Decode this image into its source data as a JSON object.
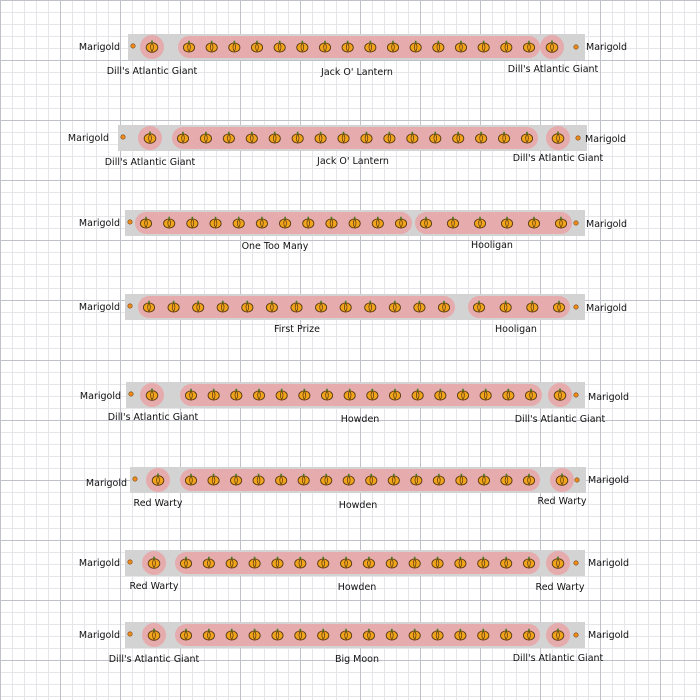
{
  "beds": [
    {
      "edge_left": "Marigold",
      "edge_right": "Marigold",
      "segments": [
        {
          "variety": "Dill's Atlantic Giant",
          "plants": 1
        },
        {
          "variety": "Jack O' Lantern",
          "plants": 16
        },
        {
          "variety": "Dill's Atlantic Giant",
          "plants": 1
        }
      ]
    },
    {
      "edge_left": "Marigold",
      "edge_right": "Marigold",
      "segments": [
        {
          "variety": "Dill's Atlantic Giant",
          "plants": 1
        },
        {
          "variety": "Jack O' Lantern",
          "plants": 16
        },
        {
          "variety": "Dill's Atlantic Giant",
          "plants": 1
        }
      ]
    },
    {
      "edge_left": "Marigold",
      "edge_right": "Marigold",
      "segments": [
        {
          "variety": "One Too Many",
          "plants": 12
        },
        {
          "variety": "Hooligan",
          "plants": 6
        }
      ]
    },
    {
      "edge_left": "Marigold",
      "edge_right": "Marigold",
      "segments": [
        {
          "variety": "First Prize",
          "plants": 13
        },
        {
          "variety": "Hooligan",
          "plants": 4
        }
      ]
    },
    {
      "edge_left": "Marigold",
      "edge_right": "Marigold",
      "segments": [
        {
          "variety": "Dill's Atlantic Giant",
          "plants": 1
        },
        {
          "variety": "Howden",
          "plants": 16
        },
        {
          "variety": "Dill's Atlantic Giant",
          "plants": 1
        }
      ]
    },
    {
      "edge_left": "Marigold",
      "edge_right": "Marigold",
      "segments": [
        {
          "variety": "Red Warty",
          "plants": 1
        },
        {
          "variety": "Howden",
          "plants": 16
        },
        {
          "variety": "Red Warty",
          "plants": 1
        }
      ]
    },
    {
      "edge_left": "Marigold",
      "edge_right": "Marigold",
      "segments": [
        {
          "variety": "Red Warty",
          "plants": 1
        },
        {
          "variety": "Howden",
          "plants": 16
        },
        {
          "variety": "Red Warty",
          "plants": 1
        }
      ]
    },
    {
      "edge_left": "Marigold",
      "edge_right": "Marigold",
      "segments": [
        {
          "variety": "Dill's Atlantic Giant",
          "plants": 1
        },
        {
          "variety": "Big Moon",
          "plants": 16
        },
        {
          "variety": "Dill's Atlantic Giant",
          "plants": 1
        }
      ]
    }
  ],
  "colors": {
    "bed": "#d3d3d3",
    "planting_zone": "#e8a6a8",
    "pumpkin": "#f2a51c",
    "marigold": "#f08a1c",
    "grid": "#bfc3c9"
  },
  "icons": {
    "pumpkin": "pumpkin-icon",
    "marigold": "marigold-icon"
  }
}
